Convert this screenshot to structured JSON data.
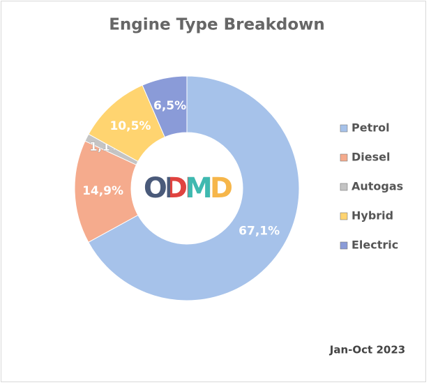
{
  "chart_data": {
    "type": "donut",
    "title": "Engine Type Breakdown",
    "categories": [
      "Petrol",
      "Diesel",
      "Autogas",
      "Hybrid",
      "Electric"
    ],
    "values": [
      67.1,
      14.9,
      1.1,
      10.5,
      6.5
    ],
    "value_labels": [
      "67,1%",
      "14,9%",
      "1,1%",
      "10,5%",
      "6,5%"
    ],
    "colors": [
      "#a6c2ea",
      "#f5ab8d",
      "#c4c4c4",
      "#ffd470",
      "#8a9bd8"
    ],
    "legend": "right",
    "center_label": "ODMD",
    "note": "Jan-Oct 2023"
  }
}
